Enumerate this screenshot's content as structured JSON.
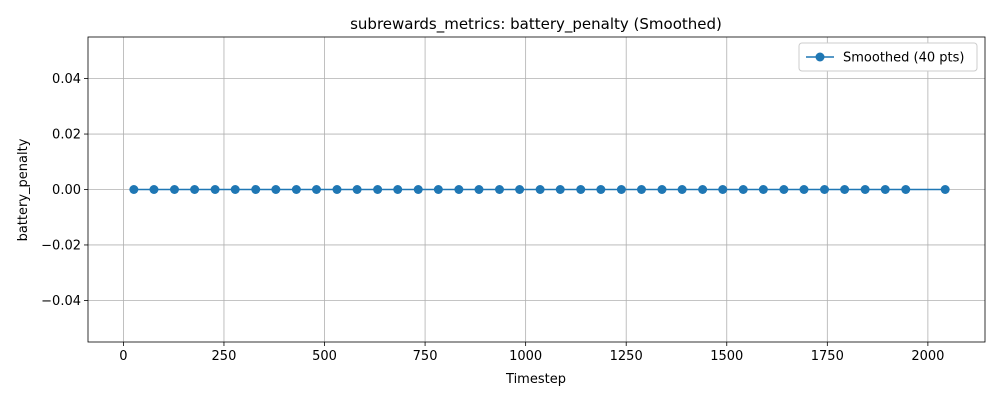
{
  "chart_data": {
    "type": "line",
    "title": "subrewards_metrics: battery_penalty (Smoothed)",
    "xlabel": "Timestep",
    "ylabel": "battery_penalty",
    "xlim": [
      -88,
      2142
    ],
    "ylim": [
      -0.055,
      0.055
    ],
    "x_ticks": [
      0,
      250,
      500,
      750,
      1000,
      1250,
      1500,
      1750,
      2000
    ],
    "y_ticks": [
      -0.04,
      -0.02,
      0.0,
      0.02,
      0.04
    ],
    "x_tick_labels": [
      "0",
      "250",
      "500",
      "750",
      "1000",
      "1250",
      "1500",
      "1750",
      "2000"
    ],
    "y_tick_labels": [
      "−0.04",
      "−0.02",
      "0.00",
      "0.02",
      "0.04"
    ],
    "grid": true,
    "legend_position": "top-right",
    "series": [
      {
        "name": "Smoothed (40 pts)",
        "color": "#1f77b4",
        "marker": "circle",
        "x": [
          26,
          76,
          127,
          177,
          228,
          278,
          329,
          379,
          430,
          480,
          531,
          581,
          632,
          682,
          733,
          783,
          834,
          884,
          935,
          985,
          1036,
          1086,
          1137,
          1187,
          1238,
          1288,
          1339,
          1389,
          1440,
          1490,
          1541,
          1591,
          1642,
          1692,
          1743,
          1793,
          1844,
          1894,
          1945,
          2043
        ],
        "values": [
          0,
          0,
          0,
          0,
          0,
          0,
          0,
          0,
          0,
          0,
          0,
          0,
          0,
          0,
          0,
          0,
          0,
          0,
          0,
          0,
          0,
          0,
          0,
          0,
          0,
          0,
          0,
          0,
          0,
          0,
          0,
          0,
          0,
          0,
          0,
          0,
          0,
          0,
          0,
          0
        ]
      }
    ]
  }
}
